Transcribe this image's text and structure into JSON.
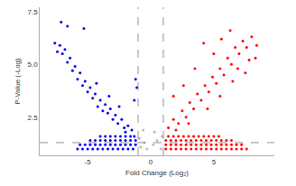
{
  "chart_data": {
    "type": "scatter",
    "x_label": "Fold Change (Log₂)",
    "y_label": "P-Value (-Log)",
    "xlim": [
      -8.8,
      9.8
    ],
    "xticks": [
      -5,
      0,
      5
    ],
    "ylim": [
      0.7,
      7.7
    ],
    "yticks": [
      {
        "value": 2.5,
        "label": "2.5"
      },
      {
        "value": 5,
        "label": "5.0"
      },
      {
        "value": 7.5,
        "label": "7.5"
      }
    ],
    "grid": false,
    "marker": "circle",
    "thresholds": {
      "x": [
        -1,
        1
      ],
      "y": 1.3
    },
    "series": [
      {
        "color": "#bbbbbb",
        "x": [
          -0.8,
          -0.5,
          -0.3,
          0.2,
          0.5,
          0.8,
          0.9,
          -0.9,
          0.3,
          -0.6
        ],
        "values": [
          1.1,
          1.3,
          1.0,
          1.2,
          1.4,
          1.0,
          1.6,
          1.5,
          1.8,
          1.9
        ]
      },
      {
        "color": "#0000ee",
        "x": [
          -5.8,
          -5.4,
          -5.0,
          -4.6,
          -4.2,
          -3.8,
          -3.4,
          -3.0,
          -2.6,
          -2.2,
          -1.8,
          -1.4,
          -5.6,
          -5.2,
          -4.8,
          -4.4,
          -4.0,
          -3.6,
          -3.2,
          -2.8,
          -2.4,
          -2.0,
          -1.6,
          -1.2,
          -4.8,
          -4.4,
          -4.0,
          -3.6,
          -3.2,
          -2.8,
          -2.4,
          -2.0,
          -1.6,
          -1.2,
          -4.0,
          -3.6,
          -3.2,
          -2.8,
          -2.4,
          -2.0,
          -1.6,
          -1.3,
          -1.5,
          -1.8,
          -2.1,
          -2.3,
          -2.6,
          -2.8,
          -3.0,
          -3.2,
          -3.4,
          -3.6,
          -3.8,
          -4.0,
          -4.2,
          -4.4,
          -4.6,
          -4.8,
          -5.0,
          -5.2,
          -5.4,
          -5.6,
          -5.8,
          -6.0,
          -6.2,
          -6.4,
          -6.6,
          -6.8,
          -7.0,
          -7.2,
          -7.4,
          -7.6,
          -7.1,
          -6.6,
          -5.3,
          -1.2,
          -1.1,
          -1.3,
          -2.5,
          -3.3,
          -4.3,
          -2.0
        ],
        "values": [
          1.0,
          1.0,
          1.0,
          1.0,
          1.0,
          1.0,
          1.0,
          1.0,
          1.0,
          1.0,
          1.0,
          1.0,
          1.2,
          1.2,
          1.2,
          1.2,
          1.2,
          1.2,
          1.2,
          1.2,
          1.2,
          1.2,
          1.2,
          1.2,
          1.4,
          1.4,
          1.4,
          1.4,
          1.4,
          1.4,
          1.4,
          1.4,
          1.4,
          1.4,
          1.6,
          1.6,
          1.6,
          1.6,
          1.6,
          1.6,
          1.6,
          1.6,
          1.9,
          2.1,
          2.0,
          2.4,
          2.2,
          2.6,
          2.4,
          2.9,
          2.7,
          3.1,
          2.8,
          3.3,
          3.0,
          3.6,
          3.4,
          3.9,
          3.7,
          4.2,
          4.0,
          4.6,
          4.3,
          4.9,
          4.7,
          5.3,
          5.1,
          5.7,
          5.5,
          5.9,
          5.6,
          6.0,
          7.0,
          6.8,
          6.7,
          4.3,
          3.9,
          3.3,
          3.0,
          3.5,
          4.1,
          1.8
        ]
      },
      {
        "color": "#ff0000",
        "x": [
          1.2,
          1.6,
          2.0,
          2.4,
          2.8,
          3.2,
          3.6,
          4.0,
          4.4,
          4.8,
          5.2,
          5.6,
          6.0,
          6.4,
          6.8,
          7.2,
          7.6,
          1.2,
          1.6,
          2.0,
          2.4,
          2.8,
          3.2,
          3.6,
          4.0,
          4.4,
          4.8,
          5.2,
          5.6,
          6.0,
          6.4,
          6.8,
          7.2,
          1.2,
          1.6,
          2.0,
          2.4,
          2.8,
          3.2,
          3.6,
          4.0,
          4.4,
          4.8,
          5.2,
          5.6,
          6.0,
          6.4,
          1.4,
          1.8,
          2.2,
          2.6,
          3.0,
          3.4,
          3.8,
          4.2,
          4.6,
          5.0,
          5.4,
          1.4,
          1.8,
          2.2,
          2.5,
          2.8,
          3.1,
          3.4,
          3.7,
          4.0,
          4.3,
          4.6,
          4.9,
          5.2,
          5.5,
          5.8,
          6.1,
          6.4,
          6.7,
          7.0,
          7.3,
          7.6,
          8.0,
          8.4,
          6.3,
          5.6,
          4.2,
          3.5,
          2.6,
          1.8,
          5.0,
          7.8,
          6.9,
          3.0,
          4.5,
          5.5,
          6.5,
          2.0,
          7.5,
          8.3
        ],
        "values": [
          1.0,
          1.0,
          1.0,
          1.0,
          1.0,
          1.0,
          1.0,
          1.0,
          1.0,
          1.0,
          1.0,
          1.0,
          1.0,
          1.0,
          1.0,
          1.0,
          1.0,
          1.2,
          1.2,
          1.2,
          1.2,
          1.2,
          1.2,
          1.2,
          1.2,
          1.2,
          1.2,
          1.2,
          1.2,
          1.2,
          1.2,
          1.2,
          1.2,
          1.4,
          1.4,
          1.4,
          1.4,
          1.4,
          1.4,
          1.4,
          1.4,
          1.4,
          1.4,
          1.4,
          1.4,
          1.4,
          1.4,
          1.6,
          1.6,
          1.6,
          1.6,
          1.6,
          1.6,
          1.6,
          1.6,
          1.6,
          1.6,
          1.6,
          2.0,
          2.4,
          2.2,
          2.8,
          2.5,
          3.2,
          2.9,
          3.6,
          3.3,
          4.0,
          3.7,
          4.4,
          4.1,
          4.8,
          4.5,
          5.3,
          5.0,
          5.8,
          5.5,
          6.1,
          5.8,
          6.3,
          5.9,
          6.6,
          6.2,
          6.0,
          4.8,
          4.0,
          3.5,
          5.5,
          5.2,
          4.8,
          2.2,
          2.9,
          3.5,
          4.2,
          1.9,
          4.6,
          5.3
        ]
      }
    ]
  }
}
